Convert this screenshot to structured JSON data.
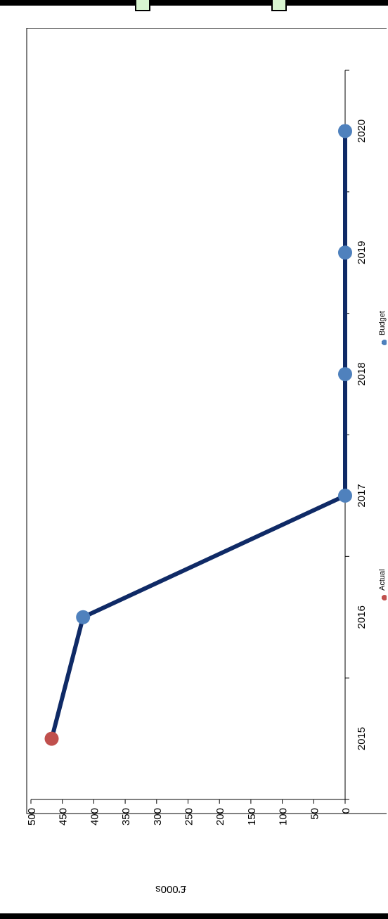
{
  "chart_data": {
    "type": "line",
    "orientation": "rotated-90-clockwise",
    "ylabel": "£'000s",
    "xlabel": "",
    "categories": [
      "2015",
      "2016",
      "2017",
      "2018",
      "2019",
      "2020"
    ],
    "ylim": [
      0,
      500
    ],
    "yticks": [
      "0",
      "50",
      "100",
      "150",
      "200",
      "250",
      "300",
      "350",
      "400",
      "450",
      "500"
    ],
    "series": [
      {
        "name": "Budget",
        "x": [
          "2016",
          "2017",
          "2018",
          "2019",
          "2020"
        ],
        "values": [
          417,
          0,
          0,
          0,
          0
        ],
        "color": "#4f81bd",
        "line_color": "#0f2a66"
      },
      {
        "name": "Actual",
        "x": [
          "2015"
        ],
        "values": [
          467
        ],
        "color": "#c0504d"
      }
    ],
    "connector": {
      "from_series": "Actual",
      "to_series": "Budget",
      "line_color": "#0f2a66"
    },
    "legend": {
      "placement": "bottom",
      "entries": [
        "Budget",
        "Actual"
      ]
    },
    "grid": false
  }
}
